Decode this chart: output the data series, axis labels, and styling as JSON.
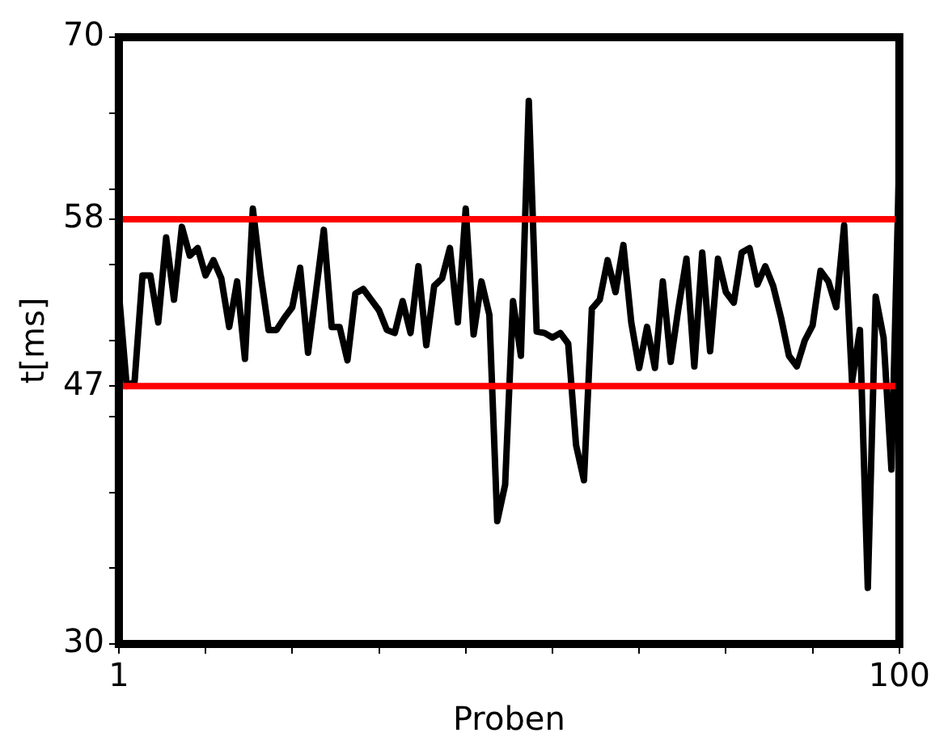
{
  "chart_data": {
    "type": "line",
    "xlabel": "Proben",
    "ylabel": "t[ms]",
    "x": [
      1,
      2,
      3,
      4,
      5,
      6,
      7,
      8,
      9,
      10,
      11,
      12,
      13,
      14,
      15,
      16,
      17,
      18,
      19,
      20,
      21,
      22,
      23,
      24,
      25,
      26,
      27,
      28,
      29,
      30,
      31,
      32,
      33,
      34,
      35,
      36,
      37,
      38,
      39,
      40,
      41,
      42,
      43,
      44,
      45,
      46,
      47,
      48,
      49,
      50,
      51,
      52,
      53,
      54,
      55,
      56,
      57,
      58,
      59,
      60,
      61,
      62,
      63,
      64,
      65,
      66,
      67,
      68,
      69,
      70,
      71,
      72,
      73,
      74,
      75,
      76,
      77,
      78,
      79,
      80,
      81,
      82,
      83,
      84,
      85,
      86,
      87,
      88,
      89,
      90,
      91,
      92,
      93,
      94,
      95,
      96,
      97,
      98,
      99,
      100
    ],
    "series": [
      {
        "color": "#000000",
        "values": [
          53.2,
          47.0,
          47.3,
          54.3,
          54.3,
          51.2,
          56.8,
          52.7,
          57.5,
          55.6,
          56.1,
          54.3,
          55.3,
          54.1,
          50.9,
          53.9,
          48.8,
          58.7,
          54.3,
          50.7,
          50.7,
          51.5,
          52.2,
          54.8,
          49.2,
          53.2,
          57.3,
          50.9,
          50.9,
          48.7,
          53.1,
          53.4,
          52.7,
          52.0,
          50.7,
          50.5,
          52.6,
          50.5,
          54.9,
          49.7,
          53.6,
          54.1,
          56.1,
          51.2,
          58.7,
          50.4,
          53.9,
          51.7,
          38.1,
          40.5,
          52.6,
          49.0,
          65.8,
          50.6,
          50.5,
          50.2,
          50.5,
          49.8,
          43.1,
          40.8,
          52.1,
          52.7,
          55.3,
          53.2,
          56.3,
          51.2,
          48.2,
          50.9,
          48.2,
          53.9,
          48.6,
          52.2,
          55.4,
          48.3,
          55.8,
          49.3,
          55.4,
          53.2,
          52.5,
          55.8,
          56.1,
          53.7,
          54.9,
          53.6,
          51.5,
          49.0,
          48.3,
          50.0,
          51.0,
          54.6,
          53.9,
          52.2,
          57.6,
          47.3,
          50.7,
          33.7,
          52.9,
          50.2,
          41.5,
          62.1
        ]
      }
    ],
    "xlim": [
      1,
      100
    ],
    "xticks": [
      1,
      {
        "value": 12,
        "label": null
      },
      {
        "value": 23,
        "label": null
      },
      {
        "value": 34,
        "label": null
      },
      {
        "value": 45,
        "label": null
      },
      {
        "value": 56,
        "label": null
      },
      {
        "value": 67,
        "label": null
      },
      {
        "value": 78,
        "label": null
      },
      {
        "value": 89,
        "label": null
      },
      100
    ],
    "ylim": [
      30,
      70
    ],
    "yticks": [
      30,
      {
        "value": 35,
        "label": null
      },
      {
        "value": 40,
        "label": null
      },
      {
        "value": 45,
        "label": null
      },
      47,
      {
        "value": 50,
        "label": null
      },
      {
        "value": 55,
        "label": null
      },
      58,
      {
        "value": 60,
        "label": null
      },
      {
        "value": 65,
        "label": null
      },
      70
    ],
    "ref_lines": [
      {
        "axis": "y",
        "value": 58,
        "color": "#ff0000"
      },
      {
        "axis": "y",
        "value": 47,
        "color": "#ff0000"
      }
    ],
    "grid": false,
    "legend": false,
    "marker": "none",
    "line_style": "solid"
  }
}
